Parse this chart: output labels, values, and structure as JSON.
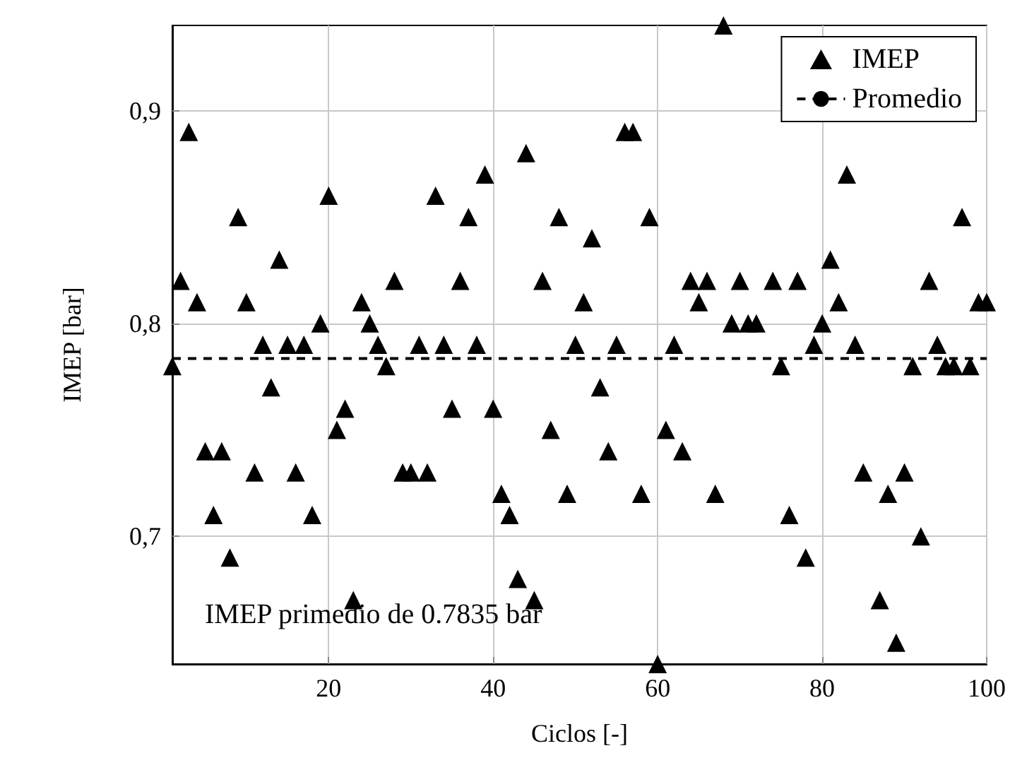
{
  "chart_data": {
    "type": "scatter",
    "xlabel": "Ciclos [-]",
    "ylabel": "IMEP [bar]",
    "xlim": [
      1,
      100
    ],
    "xticks": [
      20,
      40,
      60,
      80,
      100
    ],
    "ylim": [
      0.64,
      0.94
    ],
    "yticks": [
      {
        "value": 0.7,
        "label": "0,7"
      },
      {
        "value": 0.8,
        "label": "0,8"
      },
      {
        "value": 0.9,
        "label": "0,9"
      }
    ],
    "grid": true,
    "legend": "top right",
    "marker": "triangle",
    "series": [
      {
        "name": "IMEP",
        "color": "#000000",
        "x": [
          1,
          2,
          3,
          4,
          5,
          6,
          7,
          8,
          9,
          10,
          11,
          12,
          13,
          14,
          15,
          16,
          17,
          18,
          19,
          20,
          21,
          22,
          23,
          24,
          25,
          26,
          27,
          28,
          29,
          30,
          31,
          32,
          33,
          34,
          35,
          36,
          37,
          38,
          39,
          40,
          41,
          42,
          43,
          44,
          45,
          46,
          47,
          48,
          49,
          50,
          51,
          52,
          53,
          54,
          55,
          56,
          57,
          58,
          59,
          60,
          61,
          62,
          63,
          64,
          65,
          66,
          67,
          68,
          69,
          70,
          71,
          72,
          74,
          75,
          76,
          77,
          78,
          79,
          80,
          81,
          82,
          83,
          84,
          85,
          87,
          88,
          89,
          90,
          91,
          92,
          93,
          94,
          95,
          96,
          97,
          98,
          99,
          100
        ],
        "values": [
          0.78,
          0.82,
          0.89,
          0.81,
          0.74,
          0.71,
          0.74,
          0.69,
          0.85,
          0.81,
          0.73,
          0.79,
          0.77,
          0.83,
          0.79,
          0.73,
          0.79,
          0.71,
          0.8,
          0.86,
          0.75,
          0.76,
          0.67,
          0.81,
          0.8,
          0.79,
          0.78,
          0.82,
          0.73,
          0.73,
          0.79,
          0.73,
          0.86,
          0.79,
          0.76,
          0.82,
          0.85,
          0.79,
          0.87,
          0.76,
          0.72,
          0.71,
          0.68,
          0.88,
          0.67,
          0.82,
          0.75,
          0.85,
          0.72,
          0.79,
          0.81,
          0.84,
          0.77,
          0.74,
          0.79,
          0.89,
          0.89,
          0.72,
          0.85,
          0.64,
          0.75,
          0.79,
          0.74,
          0.82,
          0.81,
          0.82,
          0.72,
          0.94,
          0.8,
          0.82,
          0.8,
          0.8,
          0.82,
          0.78,
          0.71,
          0.82,
          0.69,
          0.79,
          0.8,
          0.83,
          0.81,
          0.87,
          0.79,
          0.73,
          0.67,
          0.72,
          0.65,
          0.73,
          0.78,
          0.7,
          0.82,
          0.79,
          0.78,
          0.78,
          0.85,
          0.78,
          0.81,
          0.81
        ]
      },
      {
        "name": "Promedio",
        "type": "line",
        "color": "#000000",
        "marker": "none",
        "line_style": "dashed",
        "x": [
          1,
          100
        ],
        "values": [
          0.7835,
          0.7835
        ]
      }
    ],
    "annotations": [
      "IMEP primedio de 0.7835 bar"
    ]
  }
}
